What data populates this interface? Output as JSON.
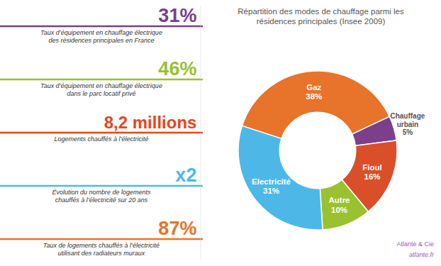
{
  "chart_data": {
    "type": "pie",
    "title": "Répartition des modes de chauffage parmi les\nrésidences principales (Insee 2009)",
    "categories": [
      "Gaz",
      "Chauffage\nurbain",
      "Fioul",
      "Autre",
      "Electricité"
    ],
    "values": [
      38,
      5,
      16,
      10,
      31
    ],
    "value_labels": [
      "38%",
      "5%",
      "16%",
      "10%",
      "31%"
    ],
    "colors": [
      "#E8732A",
      "#7B3F8C",
      "#D94F2A",
      "#99C130",
      "#4DB8E8"
    ],
    "data_labels": true,
    "annotations": [
      {
        "text": "31%",
        "color": "#7B3F8C",
        "description": "Taux d’équipement en chauffage électrique\ndes résidences principales en France"
      },
      {
        "text": "46%",
        "color": "#99C130",
        "description": "Taux d’équipement en chauffage électrique\ndans le parc locatif privé"
      },
      {
        "text": "8,2 millions",
        "color": "#E8451A",
        "description": "Logements chauffés à l’électricité"
      },
      {
        "text": "x2",
        "color": "#4DB8E8",
        "description": "Évolution du nombre de logements\nchauffés à l’électricité sur 20 ans"
      },
      {
        "text": "87%",
        "color": "#E8732A",
        "description": "Taux de logements chauffés à l’électricité\nutilisant des radiateurs muraux"
      },
      {
        "text": "Atlante & Cie",
        "color": "#9B59B6"
      },
      {
        "text": "atlante.fr",
        "color": "#9B59B6"
      }
    ]
  }
}
